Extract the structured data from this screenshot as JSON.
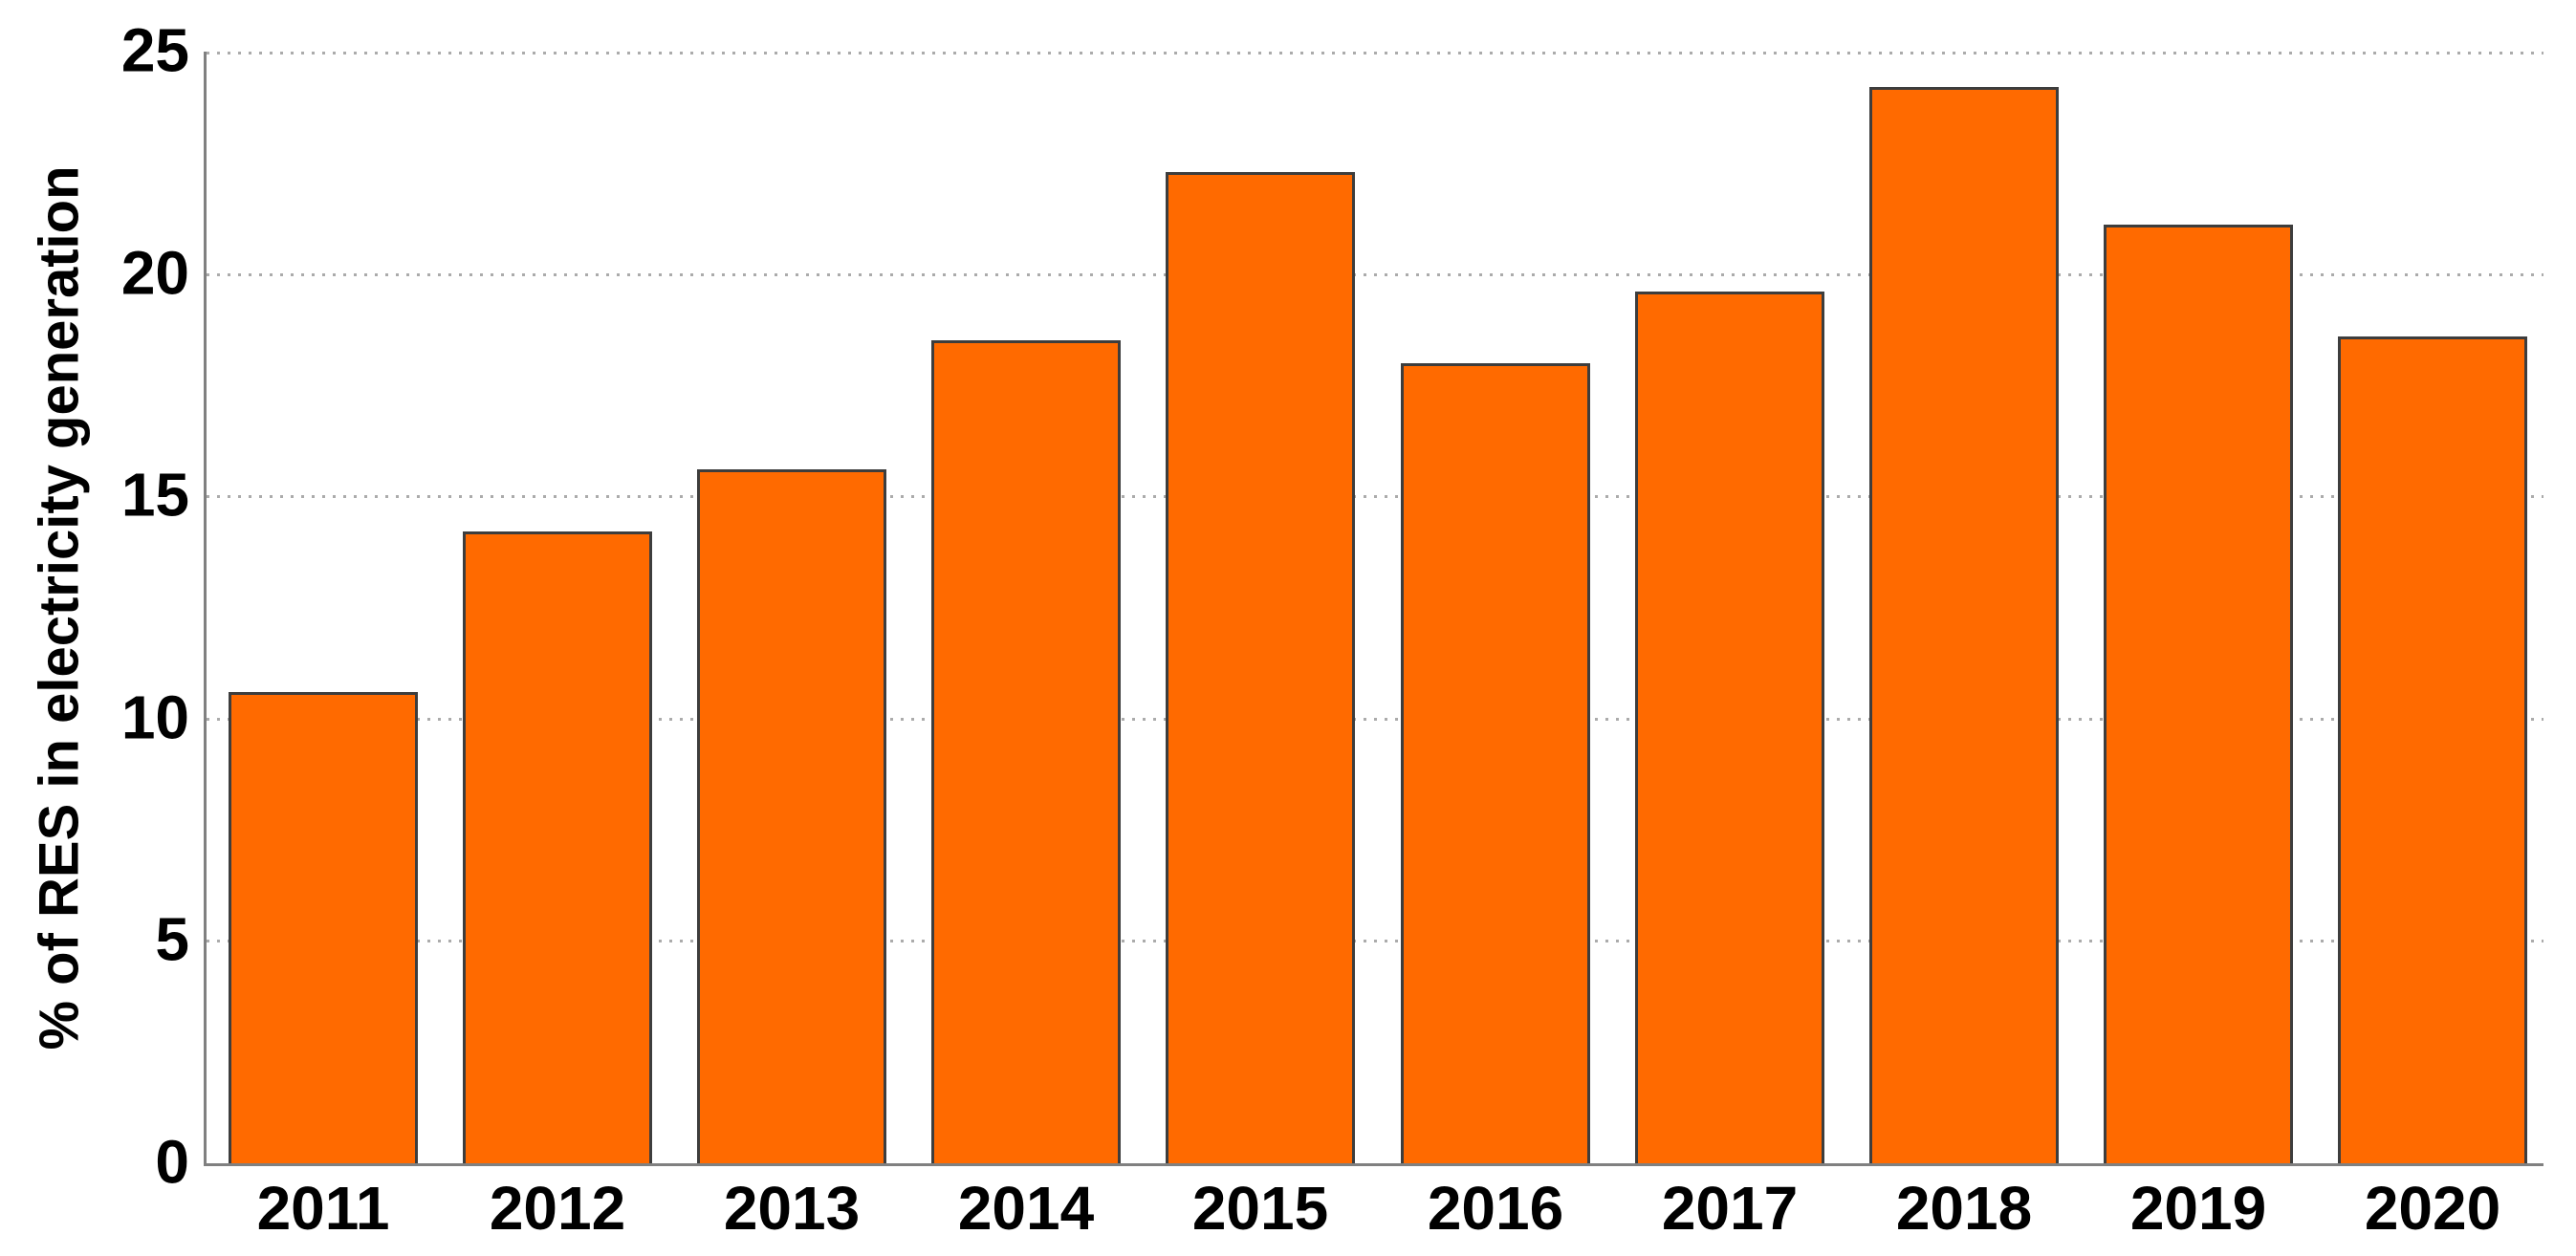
{
  "chart_data": {
    "type": "bar",
    "title": "",
    "categories": [
      "2011",
      "2012",
      "2013",
      "2014",
      "2015",
      "2016",
      "2017",
      "2018",
      "2019",
      "2020"
    ],
    "values": [
      10.6,
      14.2,
      15.6,
      18.5,
      22.3,
      18.0,
      19.6,
      24.2,
      21.1,
      18.6
    ],
    "xlabel": "",
    "ylabel": "% of RES in electricity generation",
    "ylim": [
      0,
      25
    ],
    "yticks": [
      0,
      5,
      10,
      15,
      20,
      25
    ],
    "grid": "horizontal-dotted",
    "legend": "none",
    "bar_color": "#FF6A00",
    "bar_edge_color": "#3D3D3D",
    "axis_color": "#808080",
    "gridline_color": "#ABABAB",
    "text_color": "#000000",
    "background_color": "#FFFFFF"
  }
}
